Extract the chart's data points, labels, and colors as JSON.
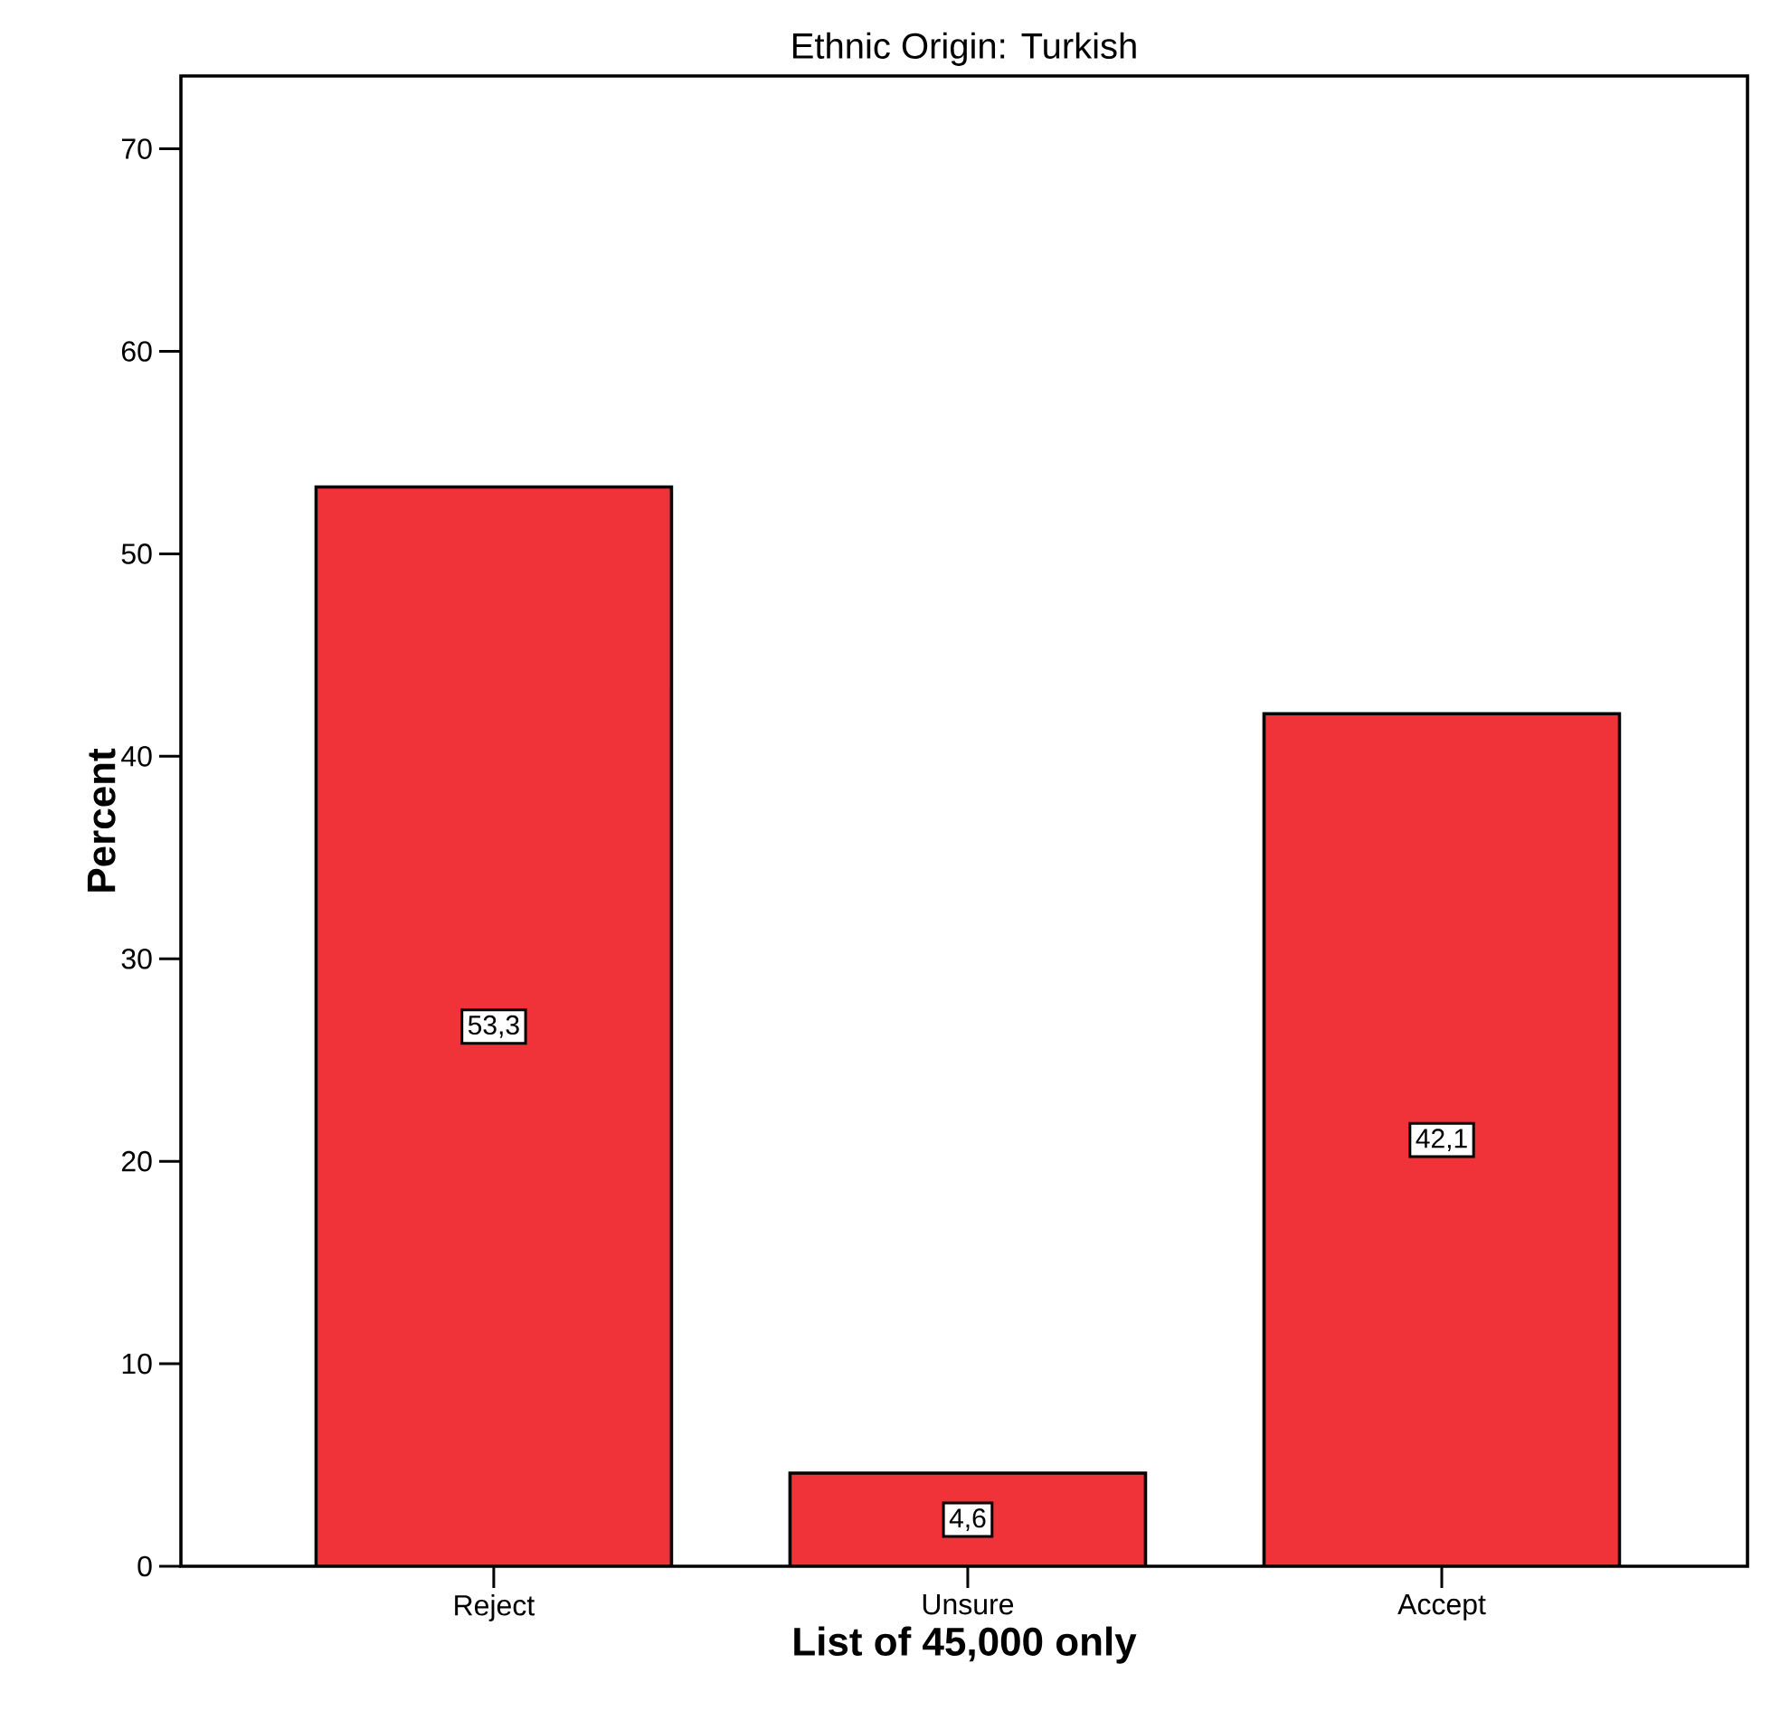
{
  "chart_data": {
    "type": "bar",
    "title": "Ethnic Origin: Turkish",
    "xlabel": "List of 45,000 only",
    "ylabel": "Percent",
    "categories": [
      "Reject",
      "Unsure",
      "Accept"
    ],
    "values": [
      53.3,
      4.6,
      42.1
    ],
    "value_labels": [
      "53,3",
      "4,6",
      "42,1"
    ],
    "color": "#ef3338",
    "ylim": [
      0,
      73.6
    ],
    "yticks": [
      0,
      10,
      20,
      30,
      40,
      50,
      60,
      70
    ],
    "grid": false
  }
}
